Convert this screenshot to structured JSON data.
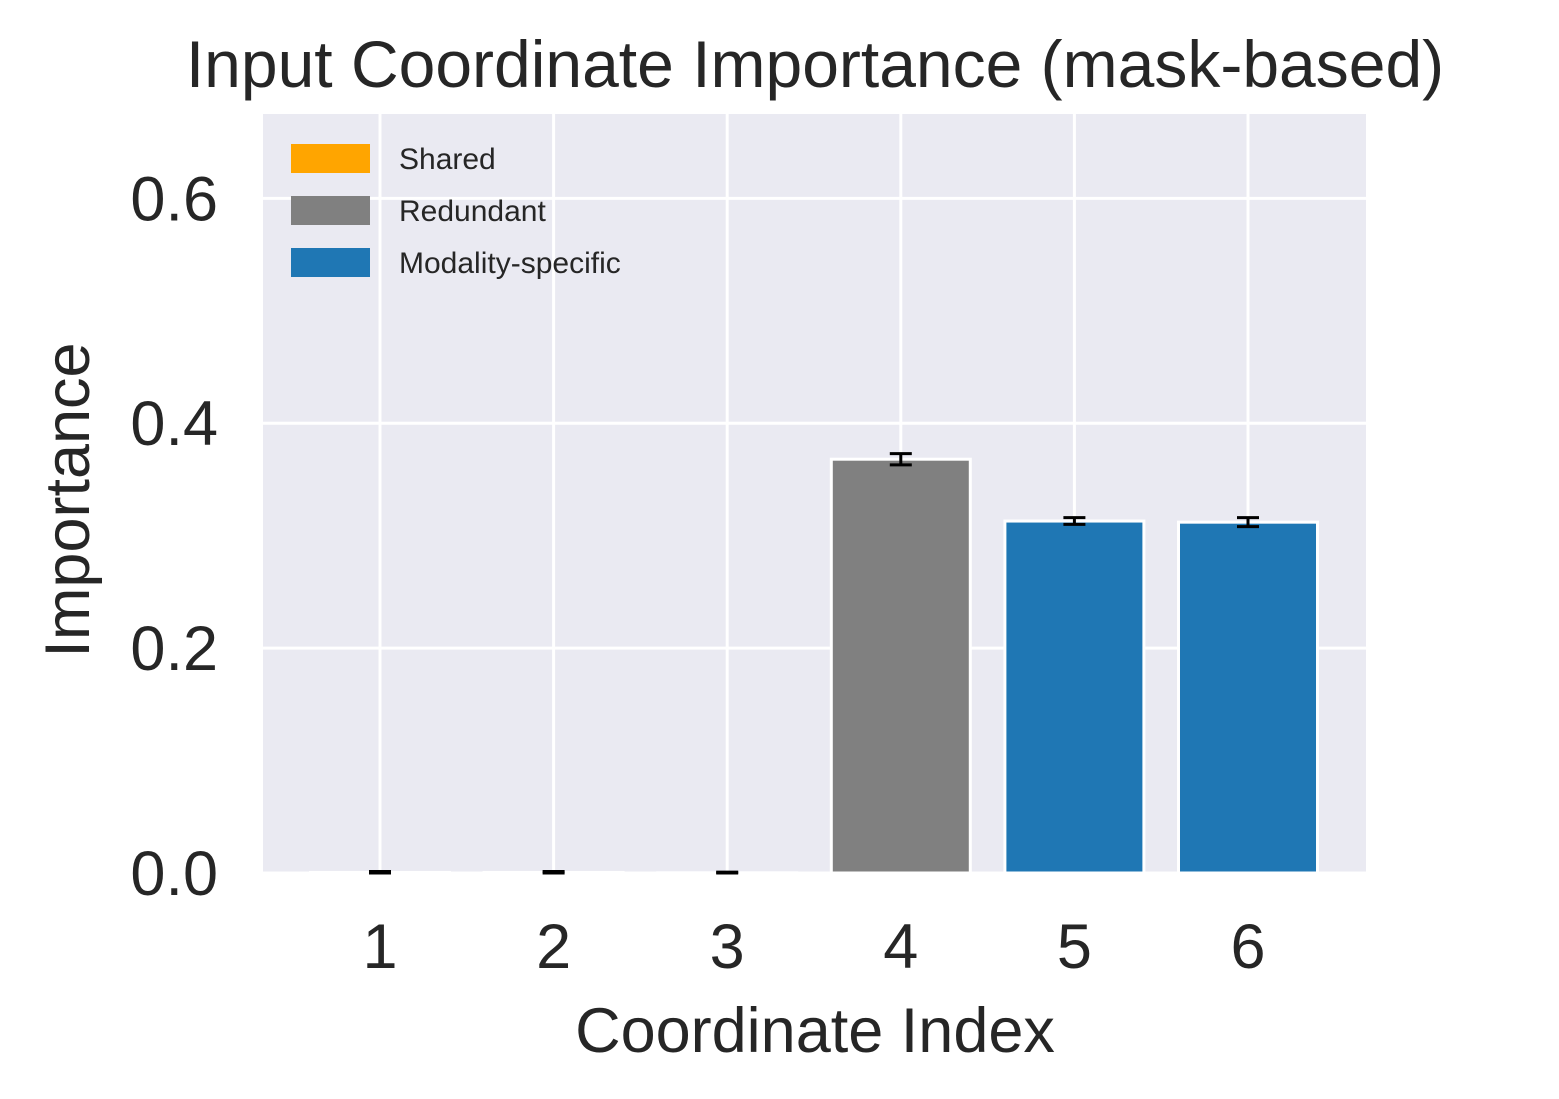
{
  "chart_data": {
    "type": "bar",
    "title": "Input Coordinate Importance (mask-based)",
    "xlabel": "Coordinate Index",
    "ylabel": "Importance",
    "categories": [
      "1",
      "2",
      "3",
      "4",
      "5",
      "6"
    ],
    "values": [
      0.0005,
      0.0005,
      0.0002,
      0.368,
      0.313,
      0.312
    ],
    "errors": [
      0.0008,
      0.0008,
      0.0006,
      0.005,
      0.003,
      0.004
    ],
    "groups": [
      "Shared",
      "Shared",
      "Shared",
      "Redundant",
      "Modality-specific",
      "Modality-specific"
    ],
    "ylim": [
      0,
      0.675
    ],
    "yticks": [
      0.0,
      0.2,
      0.4,
      0.6
    ],
    "ytick_labels": [
      "0.0",
      "0.2",
      "0.4",
      "0.6"
    ],
    "grid": true,
    "legend": {
      "placement": "top-left",
      "entries": [
        {
          "label": "Shared",
          "color": "#ffa500"
        },
        {
          "label": "Redundant",
          "color": "#808080"
        },
        {
          "label": "Modality-specific",
          "color": "#1f77b4"
        }
      ]
    },
    "colors": {
      "background": "#eaeaf2",
      "grid": "#ffffff",
      "error_bar": "#000000"
    }
  }
}
